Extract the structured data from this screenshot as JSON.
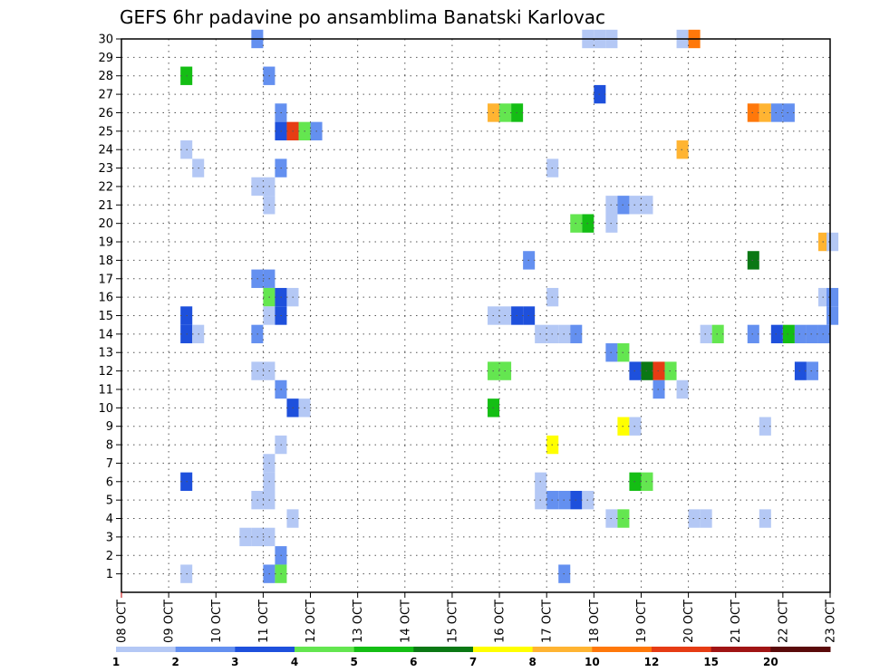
{
  "chart_data": {
    "type": "heatmap",
    "title": "GEFS 6hr padavine po ansamblima Banatski Karlovac",
    "xlabel": "",
    "ylabel": "",
    "y_ticks": [
      "1",
      "2",
      "3",
      "4",
      "5",
      "6",
      "7",
      "8",
      "9",
      "10",
      "11",
      "12",
      "13",
      "14",
      "15",
      "16",
      "17",
      "18",
      "19",
      "20",
      "21",
      "22",
      "23",
      "24",
      "25",
      "26",
      "27",
      "28",
      "29",
      "30"
    ],
    "x_ticks": [
      "08 OCT",
      "09 OCT",
      "10 OCT",
      "11 OCT",
      "12 OCT",
      "13 OCT",
      "14 OCT",
      "15 OCT",
      "16 OCT",
      "17 OCT",
      "18 OCT",
      "19 OCT",
      "20 OCT",
      "21 OCT",
      "22 OCT",
      "23 OCT"
    ],
    "x_range_days": [
      0,
      15
    ],
    "y_range": [
      0,
      30
    ],
    "grid": true,
    "legend": {
      "placement": "bottom",
      "labels": [
        "1",
        "2",
        "3",
        "4",
        "5",
        "6",
        "7",
        "8",
        "10",
        "12",
        "15",
        "20"
      ],
      "colors": [
        "#b4c8f5",
        "#6490f0",
        "#1e50dc",
        "#64e650",
        "#14be14",
        "#0a7814",
        "#ffff00",
        "#ffb432",
        "#ff780a",
        "#e63c14",
        "#a01414",
        "#5a0a0a"
      ]
    },
    "cells": [
      {
        "x": 11.5,
        "y": 30,
        "c": 2
      },
      {
        "x": 39.5,
        "y": 30,
        "c": 1
      },
      {
        "x": 40.5,
        "y": 30,
        "c": 1
      },
      {
        "x": 41.5,
        "y": 30,
        "c": 1
      },
      {
        "x": 47.5,
        "y": 30,
        "c": 1
      },
      {
        "x": 48.5,
        "y": 30,
        "c": 9
      },
      {
        "x": 5.5,
        "y": 28,
        "c": 5
      },
      {
        "x": 12.5,
        "y": 28,
        "c": 2
      },
      {
        "x": 40.5,
        "y": 27,
        "c": 3
      },
      {
        "x": 13.5,
        "y": 26,
        "c": 2
      },
      {
        "x": 31.5,
        "y": 26,
        "c": 8
      },
      {
        "x": 32.5,
        "y": 26,
        "c": 4
      },
      {
        "x": 33.5,
        "y": 26,
        "c": 5
      },
      {
        "x": 53.5,
        "y": 26,
        "c": 9
      },
      {
        "x": 54.5,
        "y": 26,
        "c": 8
      },
      {
        "x": 55.5,
        "y": 26,
        "c": 2
      },
      {
        "x": 56.5,
        "y": 26,
        "c": 2
      },
      {
        "x": 13.5,
        "y": 25,
        "c": 3
      },
      {
        "x": 14.5,
        "y": 25,
        "c": 10
      },
      {
        "x": 15.5,
        "y": 25,
        "c": 4
      },
      {
        "x": 16.5,
        "y": 25,
        "c": 2
      },
      {
        "x": 5.5,
        "y": 24,
        "c": 1
      },
      {
        "x": 47.5,
        "y": 24,
        "c": 8
      },
      {
        "x": 6.5,
        "y": 23,
        "c": 1
      },
      {
        "x": 13.5,
        "y": 23,
        "c": 2
      },
      {
        "x": 36.5,
        "y": 23,
        "c": 1
      },
      {
        "x": 11.5,
        "y": 22,
        "c": 1
      },
      {
        "x": 12.5,
        "y": 22,
        "c": 1
      },
      {
        "x": 12.5,
        "y": 21,
        "c": 1
      },
      {
        "x": 41.5,
        "y": 21,
        "c": 1
      },
      {
        "x": 42.5,
        "y": 21,
        "c": 2
      },
      {
        "x": 43.5,
        "y": 21,
        "c": 1
      },
      {
        "x": 44.5,
        "y": 21,
        "c": 1
      },
      {
        "x": 38.5,
        "y": 20,
        "c": 4
      },
      {
        "x": 39.5,
        "y": 20,
        "c": 5
      },
      {
        "x": 41.5,
        "y": 20,
        "c": 1
      },
      {
        "x": 59.5,
        "y": 19,
        "c": 8
      },
      {
        "x": 60.2,
        "y": 19,
        "c": 1
      },
      {
        "x": 34.5,
        "y": 18,
        "c": 2
      },
      {
        "x": 53.5,
        "y": 18,
        "c": 6
      },
      {
        "x": 11.5,
        "y": 17,
        "c": 2
      },
      {
        "x": 12.5,
        "y": 17,
        "c": 2
      },
      {
        "x": 12.5,
        "y": 16,
        "c": 4
      },
      {
        "x": 13.5,
        "y": 16,
        "c": 3
      },
      {
        "x": 14.5,
        "y": 16,
        "c": 1
      },
      {
        "x": 36.5,
        "y": 16,
        "c": 1
      },
      {
        "x": 59.5,
        "y": 16,
        "c": 1
      },
      {
        "x": 60.2,
        "y": 16,
        "c": 2
      },
      {
        "x": 5.5,
        "y": 15,
        "c": 3
      },
      {
        "x": 12.5,
        "y": 15,
        "c": 1
      },
      {
        "x": 13.5,
        "y": 15,
        "c": 3
      },
      {
        "x": 31.5,
        "y": 15,
        "c": 1
      },
      {
        "x": 32.5,
        "y": 15,
        "c": 1
      },
      {
        "x": 33.5,
        "y": 15,
        "c": 3
      },
      {
        "x": 34.5,
        "y": 15,
        "c": 3
      },
      {
        "x": 60.2,
        "y": 15,
        "c": 2
      },
      {
        "x": 5.5,
        "y": 14,
        "c": 3
      },
      {
        "x": 6.5,
        "y": 14,
        "c": 1
      },
      {
        "x": 11.5,
        "y": 14,
        "c": 2
      },
      {
        "x": 35.5,
        "y": 14,
        "c": 1
      },
      {
        "x": 36.5,
        "y": 14,
        "c": 1
      },
      {
        "x": 37.5,
        "y": 14,
        "c": 1
      },
      {
        "x": 38.5,
        "y": 14,
        "c": 2
      },
      {
        "x": 49.5,
        "y": 14,
        "c": 1
      },
      {
        "x": 50.5,
        "y": 14,
        "c": 4
      },
      {
        "x": 53.5,
        "y": 14,
        "c": 2
      },
      {
        "x": 55.5,
        "y": 14,
        "c": 3
      },
      {
        "x": 56.5,
        "y": 14,
        "c": 5
      },
      {
        "x": 57.5,
        "y": 14,
        "c": 2
      },
      {
        "x": 58.5,
        "y": 14,
        "c": 2
      },
      {
        "x": 59.5,
        "y": 14,
        "c": 2
      },
      {
        "x": 41.5,
        "y": 13,
        "c": 2
      },
      {
        "x": 42.5,
        "y": 13,
        "c": 4
      },
      {
        "x": 11.5,
        "y": 12,
        "c": 1
      },
      {
        "x": 12.5,
        "y": 12,
        "c": 1
      },
      {
        "x": 31.5,
        "y": 12,
        "c": 4
      },
      {
        "x": 32.5,
        "y": 12,
        "c": 4
      },
      {
        "x": 43.5,
        "y": 12,
        "c": 3
      },
      {
        "x": 44.5,
        "y": 12,
        "c": 6
      },
      {
        "x": 45.5,
        "y": 12,
        "c": 10
      },
      {
        "x": 46.5,
        "y": 12,
        "c": 4
      },
      {
        "x": 57.5,
        "y": 12,
        "c": 3
      },
      {
        "x": 58.5,
        "y": 12,
        "c": 2
      },
      {
        "x": 13.5,
        "y": 11,
        "c": 2
      },
      {
        "x": 45.5,
        "y": 11,
        "c": 2
      },
      {
        "x": 47.5,
        "y": 11,
        "c": 1
      },
      {
        "x": 14.5,
        "y": 10,
        "c": 3
      },
      {
        "x": 15.5,
        "y": 10,
        "c": 1
      },
      {
        "x": 31.5,
        "y": 10,
        "c": 5
      },
      {
        "x": 42.5,
        "y": 9,
        "c": 7
      },
      {
        "x": 43.5,
        "y": 9,
        "c": 1
      },
      {
        "x": 54.5,
        "y": 9,
        "c": 1
      },
      {
        "x": 13.5,
        "y": 8,
        "c": 1
      },
      {
        "x": 36.5,
        "y": 8,
        "c": 7
      },
      {
        "x": 12.5,
        "y": 7,
        "c": 1
      },
      {
        "x": 5.5,
        "y": 6,
        "c": 3
      },
      {
        "x": 12.5,
        "y": 6,
        "c": 1
      },
      {
        "x": 35.5,
        "y": 6,
        "c": 1
      },
      {
        "x": 43.5,
        "y": 6,
        "c": 5
      },
      {
        "x": 44.5,
        "y": 6,
        "c": 4
      },
      {
        "x": 11.5,
        "y": 5,
        "c": 1
      },
      {
        "x": 12.5,
        "y": 5,
        "c": 1
      },
      {
        "x": 35.5,
        "y": 5,
        "c": 1
      },
      {
        "x": 36.5,
        "y": 5,
        "c": 2
      },
      {
        "x": 37.5,
        "y": 5,
        "c": 2
      },
      {
        "x": 38.5,
        "y": 5,
        "c": 3
      },
      {
        "x": 39.5,
        "y": 5,
        "c": 1
      },
      {
        "x": 14.5,
        "y": 4,
        "c": 1
      },
      {
        "x": 41.5,
        "y": 4,
        "c": 1
      },
      {
        "x": 42.5,
        "y": 4,
        "c": 4
      },
      {
        "x": 48.5,
        "y": 4,
        "c": 1
      },
      {
        "x": 49.5,
        "y": 4,
        "c": 1
      },
      {
        "x": 54.5,
        "y": 4,
        "c": 1
      },
      {
        "x": 10.5,
        "y": 3,
        "c": 1
      },
      {
        "x": 11.5,
        "y": 3,
        "c": 1
      },
      {
        "x": 12.5,
        "y": 3,
        "c": 1
      },
      {
        "x": 13.5,
        "y": 2,
        "c": 2
      },
      {
        "x": 5.5,
        "y": 1,
        "c": 1
      },
      {
        "x": 12.5,
        "y": 1,
        "c": 2
      },
      {
        "x": 13.5,
        "y": 1,
        "c": 4
      },
      {
        "x": 37.5,
        "y": 1,
        "c": 2
      }
    ]
  }
}
